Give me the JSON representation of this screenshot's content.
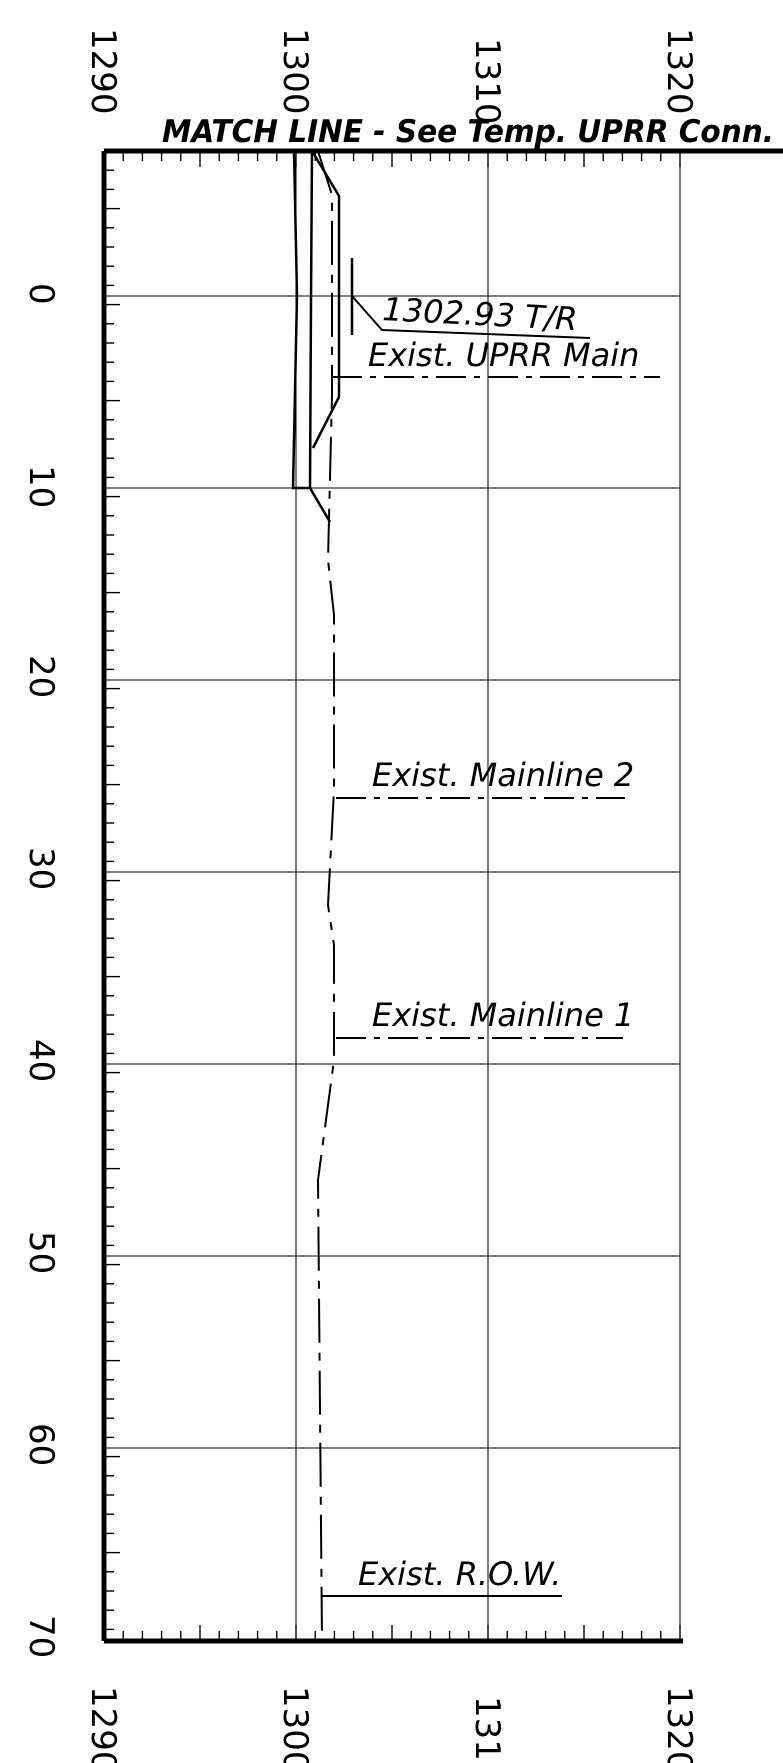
{
  "drawing": {
    "match_line_label": "MATCH LINE - See Temp. UPRR Conn.",
    "x_axis_ticks": [
      "1290",
      "1300",
      "1310",
      "1320"
    ],
    "y_axis_ticks": [
      "0",
      "10",
      "20",
      "30",
      "40",
      "50",
      "60",
      "70"
    ],
    "annotations": {
      "top_of_rail": "1302.93 T/R",
      "uprr_main": "Exist. UPRR Main",
      "mainline_2": "Exist. Mainline 2",
      "mainline_1": "Exist. Mainline 1",
      "row": "Exist. R.O.W."
    }
  }
}
